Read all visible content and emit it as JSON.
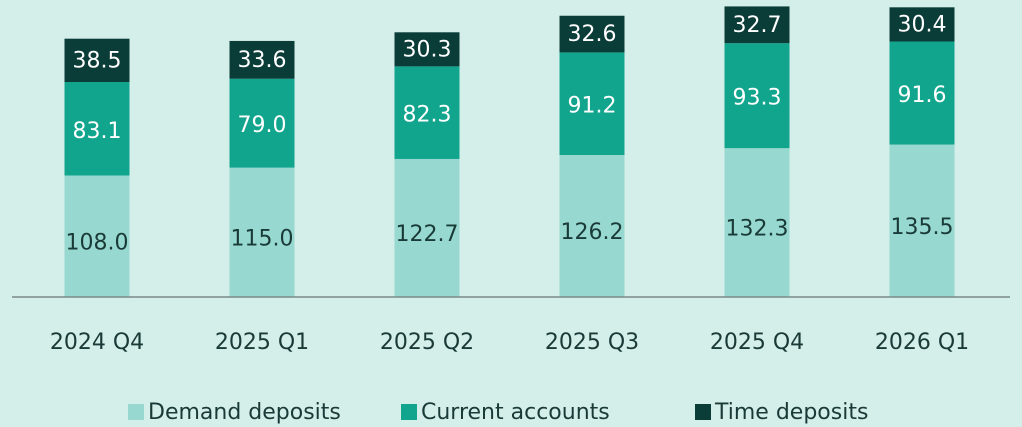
{
  "chart_data": {
    "type": "stacked_bar",
    "categories": [
      "2024 Q4",
      "2025 Q1",
      "2025 Q2",
      "2025 Q3",
      "2025 Q4",
      "2026 Q1"
    ],
    "series": [
      {
        "name": "Demand deposits",
        "color": "#97d9d0",
        "values": [
          108,
          115,
          122.7,
          126.2,
          132.3,
          135.5
        ],
        "value_labels": [
          "108.0",
          "115.0",
          "122.7",
          "126.2",
          "132.3",
          "135.5"
        ]
      },
      {
        "name": "Current accounts",
        "color": "#12a58e",
        "values": [
          83.1,
          79,
          82.3,
          91.2,
          93.3,
          91.6
        ],
        "value_labels": [
          "83.1",
          "79.0",
          "82.3",
          "91.2",
          "93.3",
          "91.6"
        ]
      },
      {
        "name": "Time deposits",
        "color": "#0b3d38",
        "values": [
          38.5,
          33.6,
          30.3,
          32.6,
          32.7,
          30.4
        ],
        "value_labels": [
          "38.5",
          "33.6",
          "30.3",
          "32.6",
          "32.7",
          "30.4"
        ]
      }
    ],
    "legend": "bottom"
  }
}
